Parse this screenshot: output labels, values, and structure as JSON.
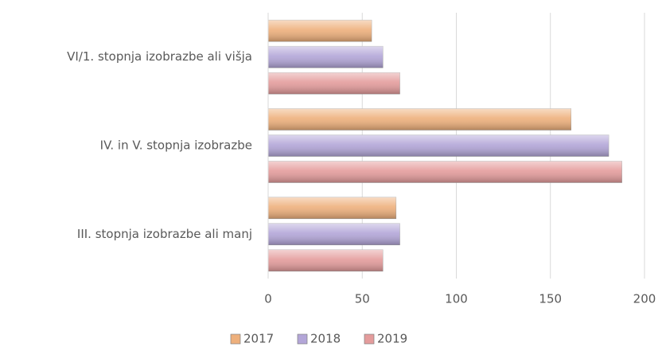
{
  "chart_data": {
    "type": "barh",
    "categories": [
      "VI/1. stopnja izobrazbe ali višja",
      "IV. in V. stopnja izobrazbe",
      "III. stopnja izobrazbe ali manj"
    ],
    "series": [
      {
        "name": "2017",
        "color": "#eeb07c",
        "values": [
          55,
          161,
          68
        ]
      },
      {
        "name": "2018",
        "color": "#b3a6d8",
        "values": [
          61,
          181,
          70
        ]
      },
      {
        "name": "2019",
        "color": "#e49c9c",
        "values": [
          70,
          188,
          61
        ]
      }
    ],
    "xlim": [
      0,
      200
    ],
    "xticks": [
      0,
      50,
      100,
      150,
      200
    ],
    "grid": true,
    "legend": "bottom"
  }
}
